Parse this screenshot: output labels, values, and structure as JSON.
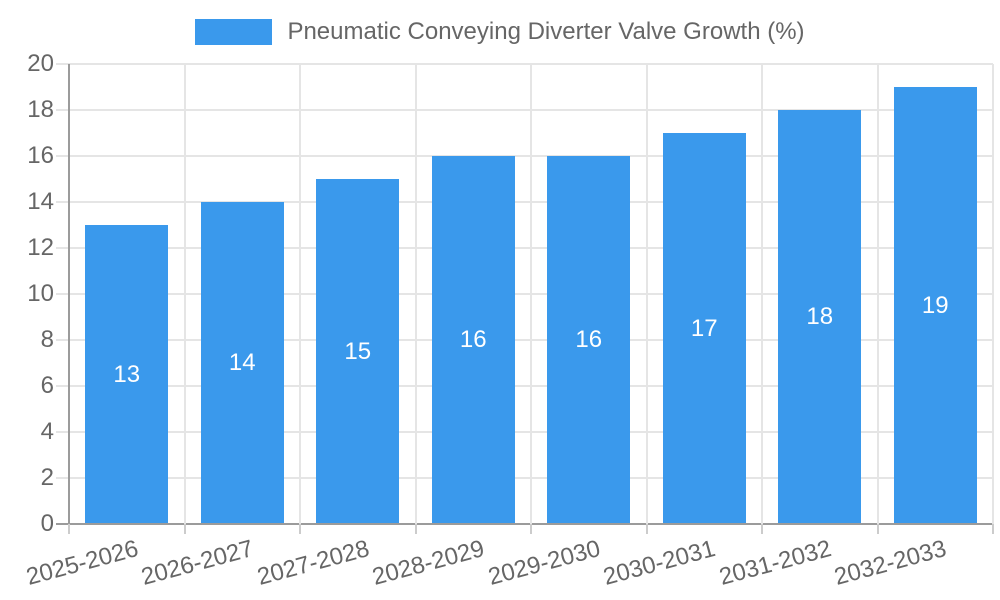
{
  "chart_data": {
    "type": "bar",
    "title": "Pneumatic Conveying Diverter Valve Growth (%)",
    "legend": {
      "position": "top",
      "label": "Pneumatic Conveying Diverter Valve Growth (%)"
    },
    "categories": [
      "2025-2026",
      "2026-2027",
      "2027-2028",
      "2028-2029",
      "2029-2030",
      "2030-2031",
      "2031-2032",
      "2032-2033"
    ],
    "values": [
      13,
      14,
      15,
      16,
      16,
      17,
      18,
      19
    ],
    "yticks": [
      0,
      2,
      4,
      6,
      8,
      10,
      12,
      14,
      16,
      18,
      20
    ],
    "ylim": [
      0,
      20
    ],
    "xlabel": "",
    "ylabel": "",
    "grid": true,
    "bar_labels_inside": true,
    "colors": {
      "bar": "#3A99EC",
      "bar_label": "#FFFFFF",
      "text": "#666666",
      "gridline": "#E5E5E5",
      "axis": "#9B9B9B",
      "tick": "#CCCCCC",
      "background": "#FFFFFF"
    }
  }
}
